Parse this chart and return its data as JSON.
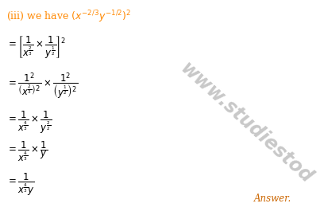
{
  "bg_color": "#ffffff",
  "watermark_color": "#c8c8c8",
  "answer_color": "#cc6600",
  "title_color": "#ff8800",
  "math_color": "#000000"
}
